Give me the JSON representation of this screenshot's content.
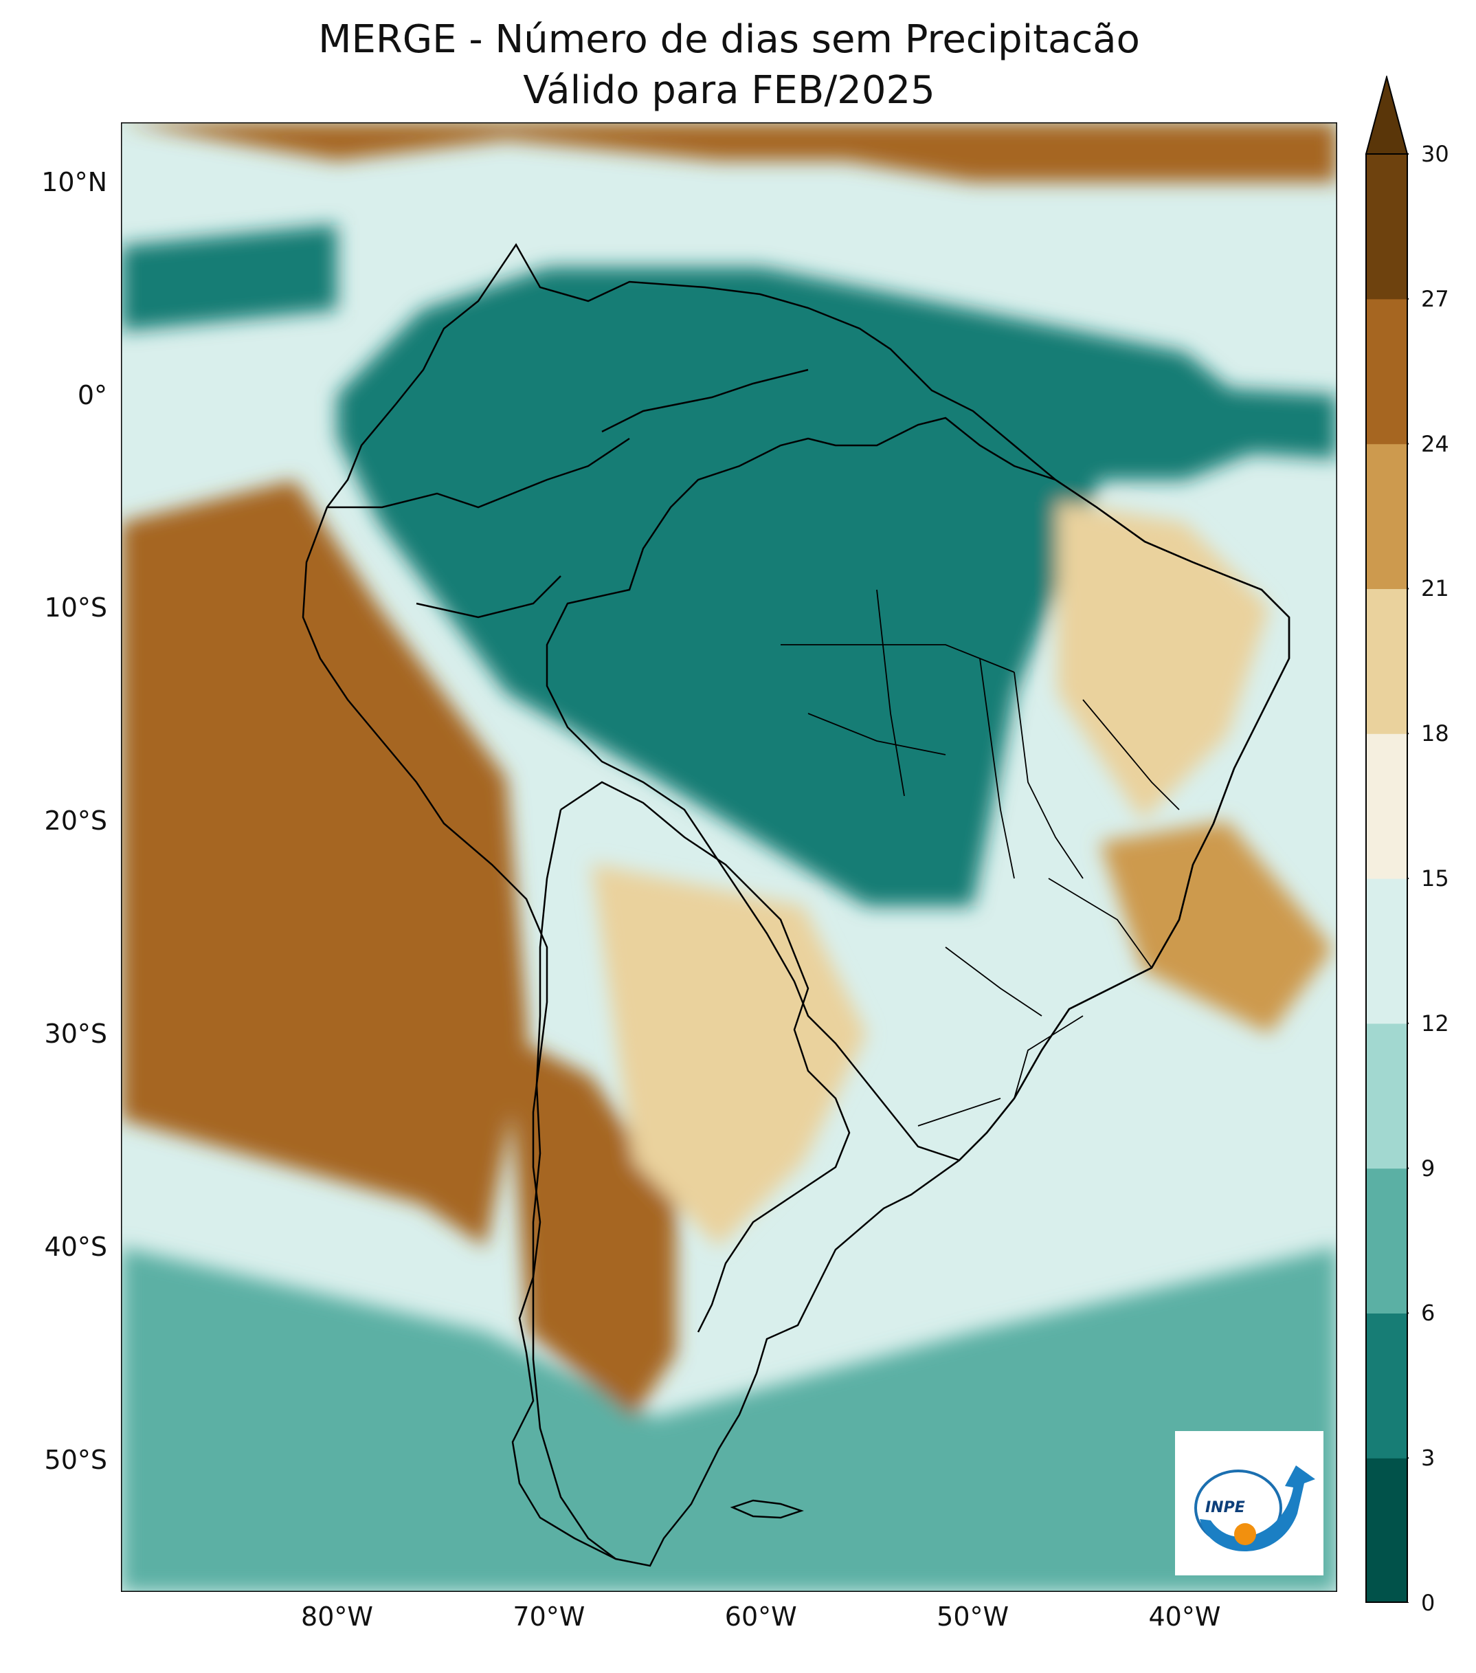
{
  "title": {
    "line1": "MERGE - Número de dias sem Precipitacão",
    "line2": "Válido para FEB/2025"
  },
  "axes": {
    "lat_ticks": [
      "10°N",
      "0°",
      "10°S",
      "20°S",
      "30°S",
      "40°S",
      "50°S"
    ],
    "lat_values": [
      10,
      0,
      -10,
      -20,
      -30,
      -40,
      -50
    ],
    "lon_ticks": [
      "80°W",
      "70°W",
      "60°W",
      "50°W",
      "40°W"
    ],
    "lon_values": [
      -80,
      -70,
      -60,
      -50,
      -40
    ],
    "lat_range": [
      -56.2,
      12.8
    ],
    "lon_range": [
      -90.2,
      -32.8
    ]
  },
  "colorbar": {
    "ticks": [
      "0",
      "3",
      "6",
      "9",
      "12",
      "15",
      "18",
      "21",
      "24",
      "27",
      "30"
    ],
    "bounds": [
      0,
      3,
      6,
      9,
      12,
      15,
      18,
      21,
      24,
      27,
      30
    ],
    "colors": [
      "#01524a",
      "#177d75",
      "#5bb0a4",
      "#a2d8d0",
      "#d9efec",
      "#f5efdf",
      "#ead29d",
      "#cd9a4e",
      "#a66621",
      "#6e420e"
    ],
    "extend_color": "#5a3609",
    "extend": "max"
  },
  "logo": {
    "text": "INPE"
  },
  "map_regions": [
    {
      "name": "amazon-core",
      "days": 1.5,
      "lon": [
        -74,
        -66,
        -58,
        -50,
        -46,
        -50,
        -56,
        -62,
        -70,
        -74
      ],
      "lat": [
        -3,
        -1,
        2,
        -1,
        -5,
        -11,
        -14,
        -13,
        -12,
        -7
      ]
    },
    {
      "name": "guiana-core",
      "days": 2.0,
      "lon": [
        -60,
        -55,
        -52,
        -55,
        -60
      ],
      "lat": [
        4,
        5,
        2,
        1,
        1
      ]
    },
    {
      "name": "amazon-ring",
      "days": 4.5,
      "lon": [
        -80,
        -76,
        -70,
        -60,
        -50,
        -40,
        -35,
        -40,
        -44,
        -48,
        -50,
        -55,
        -65,
        -72,
        -78,
        -80
      ],
      "lat": [
        0,
        4,
        6,
        6,
        4,
        2,
        -2,
        -4,
        -4,
        -14,
        -24,
        -24,
        -18,
        -14,
        -6,
        -2
      ]
    },
    {
      "name": "atlantic-itcz",
      "days": 3.0,
      "lon": [
        -50,
        -32.8,
        -32.8,
        -48
      ],
      "lat": [
        1,
        0,
        -3,
        -2
      ]
    },
    {
      "name": "pacific-itcz",
      "days": 5.0,
      "lon": [
        -90.2,
        -80,
        -80,
        -90.2
      ],
      "lat": [
        7,
        8,
        4,
        3
      ]
    },
    {
      "name": "south-ocean-band",
      "days": 8.0,
      "lon": [
        -90.2,
        -73,
        -65,
        -50,
        -32.8,
        -32.8,
        -60,
        -75,
        -90.2
      ],
      "lat": [
        -40,
        -44,
        -48,
        -44,
        -40,
        -56.2,
        -56.2,
        -56.2,
        -56.2
      ]
    },
    {
      "name": "ne-brazil-dry",
      "days": 20.0,
      "lon": [
        -46,
        -40,
        -36,
        -38,
        -42,
        -46
      ],
      "lat": [
        -5,
        -6,
        -10,
        -16,
        -20,
        -14
      ]
    },
    {
      "name": "se-atlantic-dry",
      "days": 23.0,
      "lon": [
        -44,
        -38,
        -33,
        -36,
        -42
      ],
      "lat": [
        -21,
        -20,
        -26,
        -30,
        -27
      ]
    },
    {
      "name": "peru-chile-dry",
      "days": 26.0,
      "lon": [
        -90.2,
        -82,
        -78,
        -72,
        -71,
        -73,
        -76,
        -90.2
      ],
      "lat": [
        -6,
        -4,
        -10,
        -18,
        -30,
        -40,
        -38,
        -34
      ]
    },
    {
      "name": "andes-patagonia-dry",
      "days": 24.0,
      "lon": [
        -72,
        -68,
        -64,
        -64,
        -66,
        -71
      ],
      "lat": [
        -30,
        -32,
        -38,
        -45,
        -48,
        -44
      ]
    },
    {
      "name": "caribbean-dry",
      "days": 24.0,
      "lon": [
        -90.2,
        -80,
        -72,
        -62,
        -56,
        -50,
        -40,
        -32.8,
        -32.8,
        -90.2
      ],
      "lat": [
        12.8,
        11,
        12,
        11,
        11,
        10,
        10,
        10,
        12.8,
        12.8
      ]
    },
    {
      "name": "argentina-semi",
      "days": 18.5,
      "lon": [
        -68,
        -58,
        -55,
        -58,
        -62,
        -66
      ],
      "lat": [
        -22,
        -24,
        -30,
        -36,
        -40,
        -36
      ]
    }
  ]
}
